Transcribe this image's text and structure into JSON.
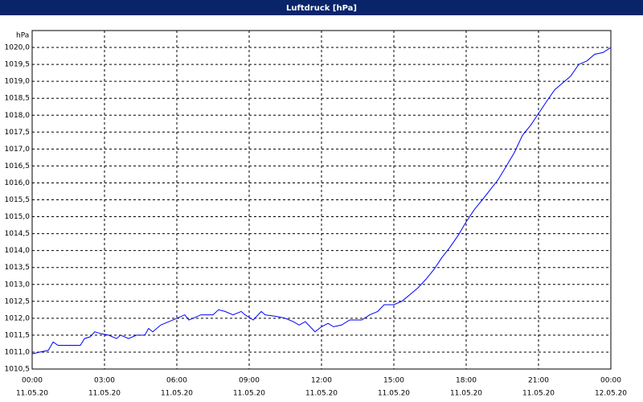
{
  "chart_data": {
    "type": "line",
    "title": "Luftdruck [hPa]",
    "y_unit": "hPa",
    "x": [
      0,
      0.33,
      0.67,
      0.87,
      1.07,
      2,
      2.17,
      2.4,
      2.6,
      2.83,
      3.17,
      3.5,
      3.67,
      4,
      4.33,
      4.67,
      4.83,
      5,
      5.33,
      5.67,
      6,
      6.33,
      6.5,
      6.67,
      7,
      7.5,
      7.73,
      8,
      8.33,
      8.67,
      8.83,
      9.17,
      9.5,
      9.67,
      10.17,
      10.5,
      10.83,
      11.07,
      11.33,
      11.73,
      12,
      12.27,
      12.5,
      12.83,
      13.17,
      13.67,
      14,
      14.33,
      14.6,
      15,
      15.33,
      15.67,
      16,
      16.33,
      16.67,
      17,
      17.33,
      17.67,
      18,
      18.33,
      18.67,
      19,
      19.33,
      19.67,
      20,
      20.33,
      20.67,
      21,
      21.33,
      21.67,
      22,
      22.33,
      22.67,
      23,
      23.33,
      23.67,
      24
    ],
    "values": [
      1010.95,
      1011.0,
      1011.05,
      1011.3,
      1011.2,
      1011.2,
      1011.4,
      1011.45,
      1011.6,
      1011.55,
      1011.5,
      1011.4,
      1011.5,
      1011.4,
      1011.5,
      1011.5,
      1011.7,
      1011.6,
      1011.8,
      1011.9,
      1012.0,
      1012.1,
      1011.95,
      1012.0,
      1012.1,
      1012.1,
      1012.25,
      1012.2,
      1012.1,
      1012.2,
      1012.1,
      1011.95,
      1012.2,
      1012.1,
      1012.05,
      1012.0,
      1011.9,
      1011.8,
      1011.9,
      1011.6,
      1011.75,
      1011.85,
      1011.75,
      1011.8,
      1011.95,
      1011.95,
      1012.1,
      1012.2,
      1012.4,
      1012.4,
      1012.5,
      1012.7,
      1012.9,
      1013.15,
      1013.45,
      1013.8,
      1014.1,
      1014.45,
      1014.85,
      1015.2,
      1015.5,
      1015.8,
      1016.1,
      1016.5,
      1016.9,
      1017.4,
      1017.7,
      1018.05,
      1018.4,
      1018.75,
      1018.95,
      1019.15,
      1019.5,
      1019.6,
      1019.8,
      1019.85,
      1020.0
    ],
    "color": "#0000ff",
    "xlim": [
      0,
      24
    ],
    "xticks": [
      {
        "value": 0,
        "label": "00:00",
        "date": "11.05.20"
      },
      {
        "value": 3,
        "label": "03:00",
        "date": "11.05.20"
      },
      {
        "value": 6,
        "label": "06:00",
        "date": "11.05.20"
      },
      {
        "value": 9,
        "label": "09:00",
        "date": "11.05.20"
      },
      {
        "value": 12,
        "label": "12:00",
        "date": "11.05.20"
      },
      {
        "value": 15,
        "label": "15:00",
        "date": "11.05.20"
      },
      {
        "value": 18,
        "label": "18:00",
        "date": "11.05.20"
      },
      {
        "value": 21,
        "label": "21:00",
        "date": "11.05.20"
      },
      {
        "value": 24,
        "label": "00:00",
        "date": "12.05.20"
      }
    ],
    "ylim": [
      1010.5,
      1020.5
    ],
    "yticks": [
      {
        "value": 1010.5,
        "label": "1010,5"
      },
      {
        "value": 1011,
        "label": "1011,0"
      },
      {
        "value": 1011.5,
        "label": "1011,5"
      },
      {
        "value": 1012,
        "label": "1012,0"
      },
      {
        "value": 1012.5,
        "label": "1012,5"
      },
      {
        "value": 1013,
        "label": "1013,0"
      },
      {
        "value": 1013.5,
        "label": "1013,5"
      },
      {
        "value": 1014,
        "label": "1014,0"
      },
      {
        "value": 1014.5,
        "label": "1014,5"
      },
      {
        "value": 1015,
        "label": "1015,0"
      },
      {
        "value": 1015.5,
        "label": "1015,5"
      },
      {
        "value": 1016,
        "label": "1016,0"
      },
      {
        "value": 1016.5,
        "label": "1016,5"
      },
      {
        "value": 1017,
        "label": "1017,0"
      },
      {
        "value": 1017.5,
        "label": "1017,5"
      },
      {
        "value": 1018,
        "label": "1018,0"
      },
      {
        "value": 1018.5,
        "label": "1018,5"
      },
      {
        "value": 1019,
        "label": "1019,0"
      },
      {
        "value": 1019.5,
        "label": "1019,5"
      },
      {
        "value": 1020,
        "label": "1020,0"
      }
    ],
    "grid": true
  }
}
